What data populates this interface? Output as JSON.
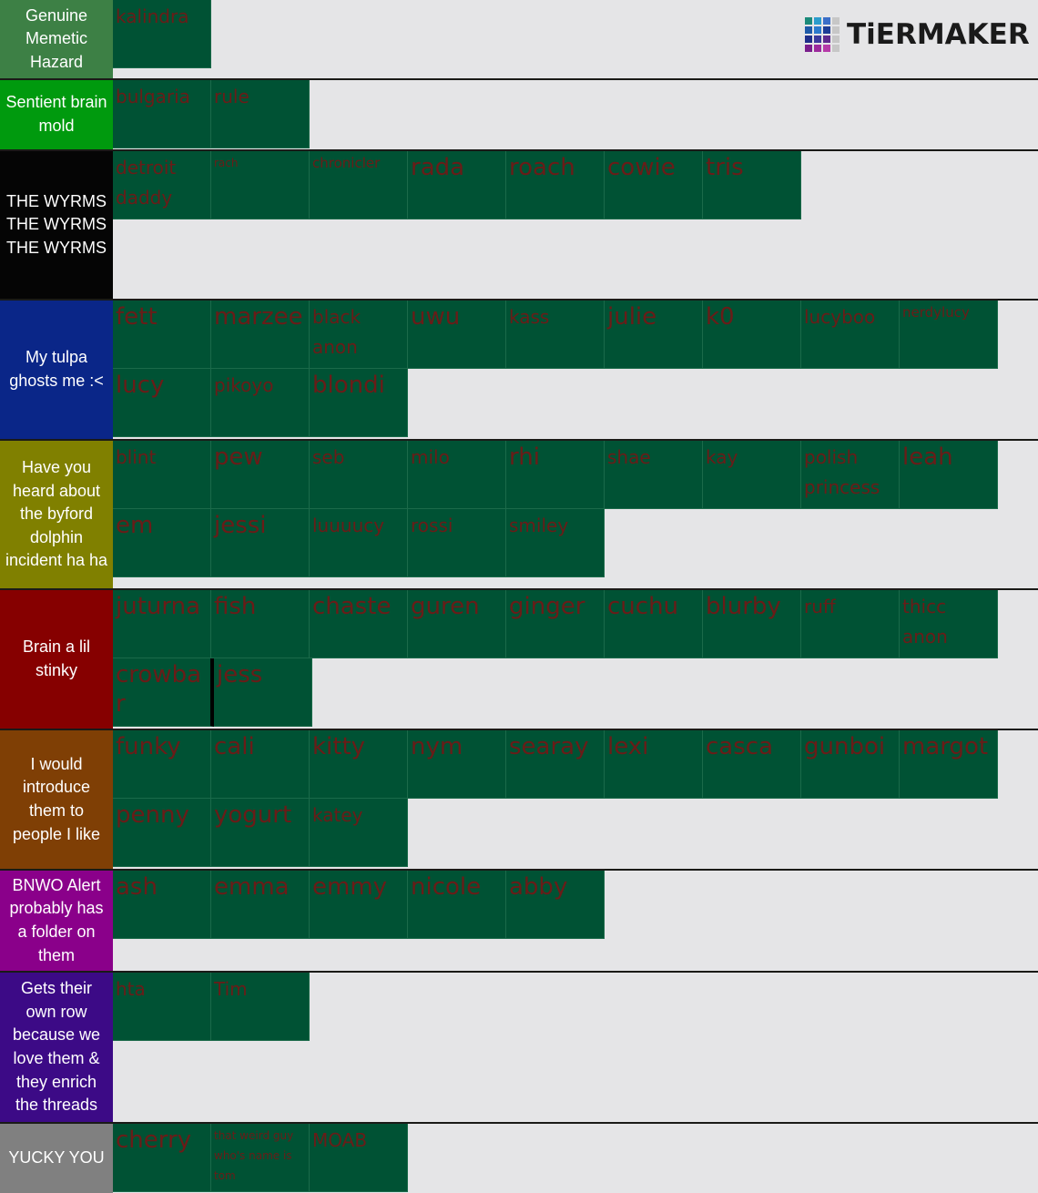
{
  "logo": {
    "text": "TiERMAKER",
    "grid_colors": [
      "#1b8a7a",
      "#2b9ccc",
      "#3b6ec8",
      "#c7c7c7",
      "#1e5aa8",
      "#2b7acc",
      "#1d3d96",
      "#c7c7c7",
      "#1f2f8a",
      "#3a3a9c",
      "#5e2a8e",
      "#c7c7c7",
      "#7a1e8c",
      "#9c2a9c",
      "#b53aa8",
      "#c7c7c7"
    ]
  },
  "tiers": [
    {
      "label": "Genuine Memetic Hazard",
      "color": "#3d8045",
      "items": [
        "kalindra"
      ]
    },
    {
      "label": "Sentient brain mold",
      "color": "#009a0e",
      "items": [
        "bulgaria",
        "rule"
      ]
    },
    {
      "label": "THE WYRMS THE WYRMS THE WYRMS",
      "color": "#050505",
      "items": [
        "detroit daddy",
        "rach",
        "chronicler",
        "rada",
        "roach",
        "cowie",
        "tris"
      ]
    },
    {
      "label": "My tulpa ghosts me :<",
      "color": "#0a2688",
      "items": [
        "fett",
        "marzee",
        "black anon",
        "uwu",
        "kass",
        "julie",
        "k0",
        "lucyboo",
        "nerdylucy",
        "lucy",
        "pikoyo",
        "blondi"
      ]
    },
    {
      "label": "Have you heard about the byford dolphin incident ha ha",
      "color": "#808000",
      "items": [
        "blint",
        "pew",
        "seb",
        "milo",
        "rhi",
        "shae",
        "kay",
        "polish princess",
        "leah",
        "em",
        "jessi",
        "luuuucy",
        "rossi",
        "smiley"
      ]
    },
    {
      "label": "Brain a lil stinky",
      "color": "#860000",
      "items": [
        "juturna",
        "fish",
        "chaste",
        "guren",
        "ginger",
        "cuchu",
        "blurby",
        "ruff",
        "thicc anon",
        "crowbar",
        "jess"
      ]
    },
    {
      "label": "I would introduce them to people I like",
      "color": "#7f3f05",
      "items": [
        "funky",
        "cali",
        "kitty",
        "nym",
        "searay",
        "lexi",
        "casca",
        "gunboi",
        "margot",
        "penny",
        "yogurt",
        "katey"
      ]
    },
    {
      "label": "BNWO Alert probably has a folder on them",
      "color": "#8a008a",
      "items": [
        "ash",
        "emma",
        "emmy",
        "nicole",
        "abby"
      ]
    },
    {
      "label": "Gets their own row because we love them & they enrich the threads",
      "color": "#3c0a86",
      "items": [
        "hta",
        "Tim"
      ]
    },
    {
      "label": "YUCKY YOU",
      "color": "#808080",
      "items": [
        "cherry",
        "that weird guy who's name is tom",
        "MOAB"
      ]
    }
  ]
}
